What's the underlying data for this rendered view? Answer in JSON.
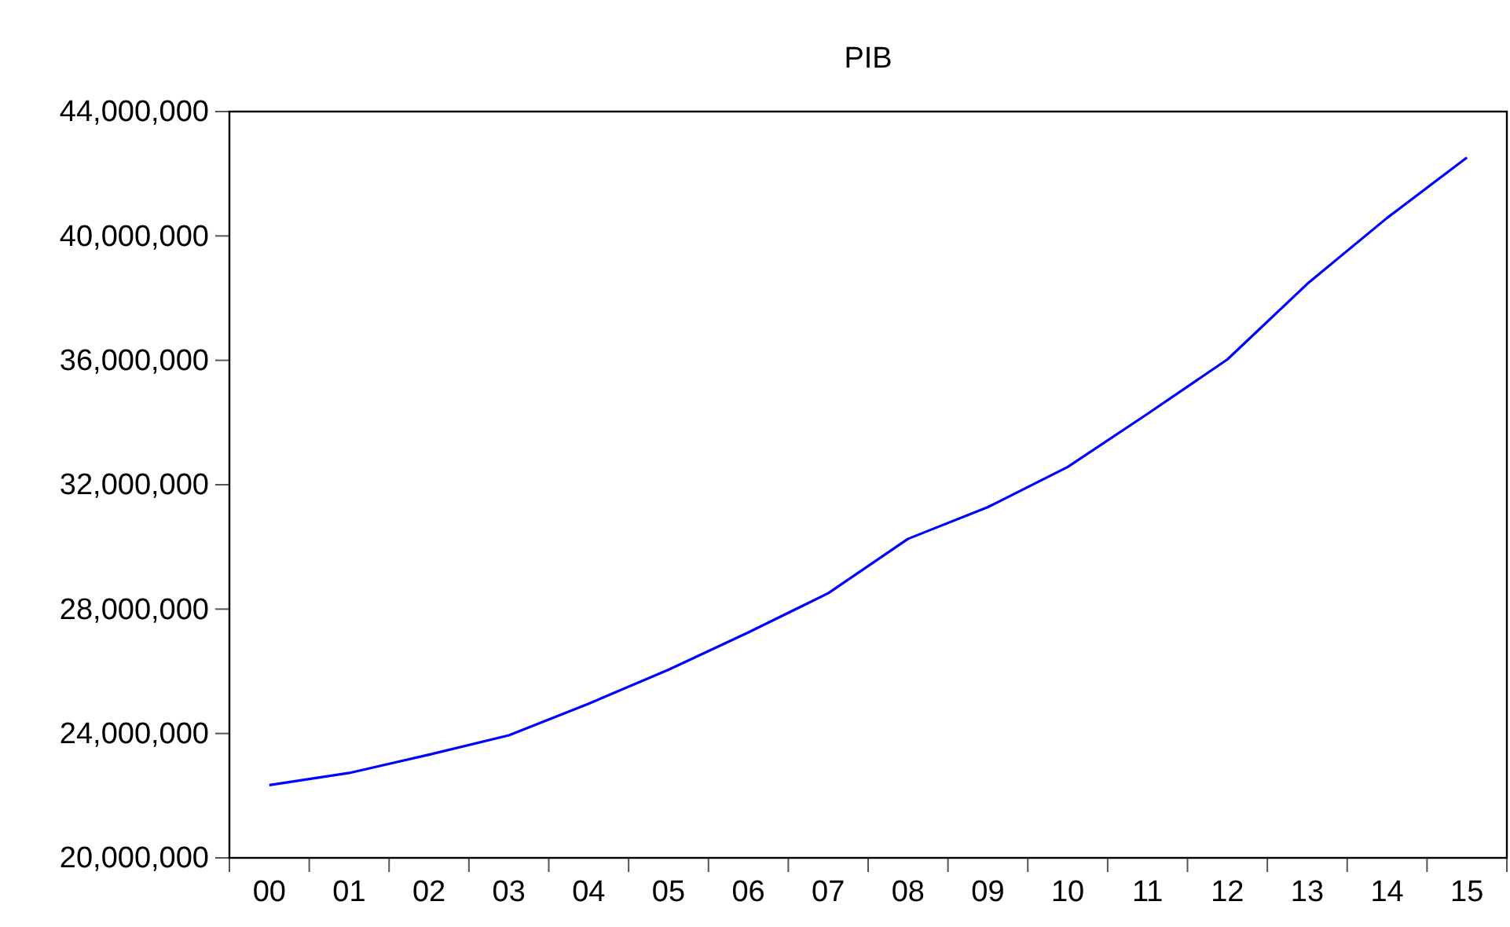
{
  "chart_data": {
    "type": "line",
    "title": "PIB",
    "categories": [
      "00",
      "01",
      "02",
      "03",
      "04",
      "05",
      "06",
      "07",
      "08",
      "09",
      "10",
      "11",
      "12",
      "13",
      "14",
      "15"
    ],
    "series": [
      {
        "color": "#0000ff",
        "values": [
          22340000,
          22730000,
          23320000,
          23940000,
          24960000,
          26050000,
          27250000,
          28510000,
          30260000,
          31280000,
          32570000,
          34280000,
          36030000,
          38460000,
          40580000,
          42520000
        ]
      }
    ],
    "ylim": [
      20000000,
      44000000
    ],
    "yticks": [
      {
        "value": 20000000,
        "label": "20,000,000"
      },
      {
        "value": 24000000,
        "label": "24,000,000"
      },
      {
        "value": 28000000,
        "label": "28,000,000"
      },
      {
        "value": 32000000,
        "label": "32,000,000"
      },
      {
        "value": 36000000,
        "label": "36,000,000"
      },
      {
        "value": 40000000,
        "label": "40,000,000"
      },
      {
        "value": 44000000,
        "label": "44,000,000"
      }
    ],
    "grid": false,
    "legend": false,
    "marker": "none",
    "line_style": "solid"
  }
}
